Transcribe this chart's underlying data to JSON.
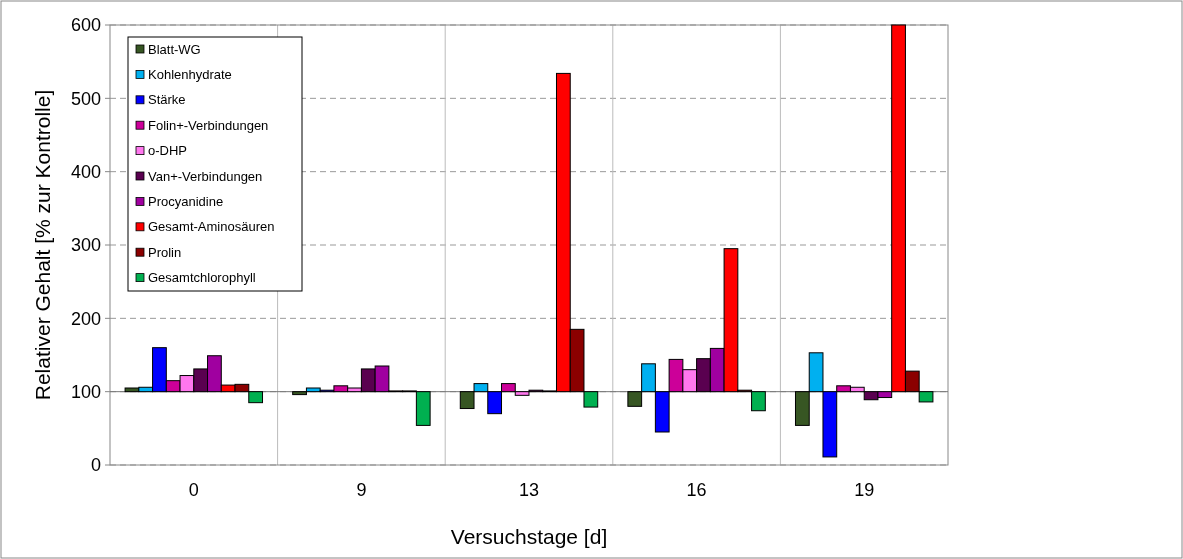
{
  "chart_data": {
    "type": "bar",
    "xlabel": "Versuchstage [d]",
    "ylabel": "Relativer Gehalt [% zur Kontrolle]",
    "categories": [
      "0",
      "9",
      "13",
      "16",
      "19"
    ],
    "series": [
      {
        "name": "Blatt-WG",
        "color": "#375623",
        "base": [
          100,
          100,
          100,
          100,
          100
        ],
        "values": [
          5,
          -4,
          -23,
          -20,
          -46
        ]
      },
      {
        "name": "Kohlenhydrate",
        "color": "#00b0f0",
        "base": [
          100,
          100,
          100,
          100,
          100
        ],
        "values": [
          6,
          5,
          11,
          38,
          53
        ]
      },
      {
        "name": "Stärke",
        "color": "#0000ff",
        "base": [
          100,
          100,
          100,
          100,
          100
        ],
        "values": [
          60,
          2,
          -30,
          -55,
          -89
        ]
      },
      {
        "name": "Folin+-Verbindungen",
        "color": "#cc0099",
        "base": [
          100,
          100,
          100,
          100,
          100
        ],
        "values": [
          15,
          8,
          11,
          44,
          8
        ]
      },
      {
        "name": "o-DHP",
        "color": "#ff77ee",
        "base": [
          100,
          100,
          100,
          100,
          100
        ],
        "values": [
          22,
          5,
          -5,
          30,
          6
        ]
      },
      {
        "name": "Van+-Verbindungen",
        "color": "#5a0050",
        "base": [
          100,
          100,
          100,
          100,
          100
        ],
        "values": [
          31,
          31,
          2,
          45,
          -11
        ]
      },
      {
        "name": "Procyanidine",
        "color": "#a000a0",
        "base": [
          100,
          100,
          100,
          100,
          100
        ],
        "values": [
          49,
          35,
          1,
          59,
          -8
        ]
      },
      {
        "name": "Gesamt-Aminosäuren",
        "color": "#ff0000",
        "base": [
          100,
          100,
          100,
          100,
          100
        ],
        "values": [
          9,
          1,
          434,
          195,
          500
        ]
      },
      {
        "name": "Prolin",
        "color": "#8b0000",
        "base": [
          100,
          100,
          100,
          100,
          100
        ],
        "values": [
          10,
          1,
          85,
          2,
          28
        ]
      },
      {
        "name": "Gesamtchlorophyll",
        "color": "#00b050",
        "base": [
          100,
          100,
          100,
          100,
          100
        ],
        "values": [
          -15,
          -46,
          -21,
          -26,
          -14
        ]
      }
    ],
    "ylim": [
      0,
      600
    ],
    "yticks": [
      0,
      100,
      200,
      300,
      400,
      500,
      600
    ],
    "grid": true,
    "legend": "top left",
    "ref_lines": [
      {
        "axis": "y",
        "value": 100
      }
    ]
  }
}
